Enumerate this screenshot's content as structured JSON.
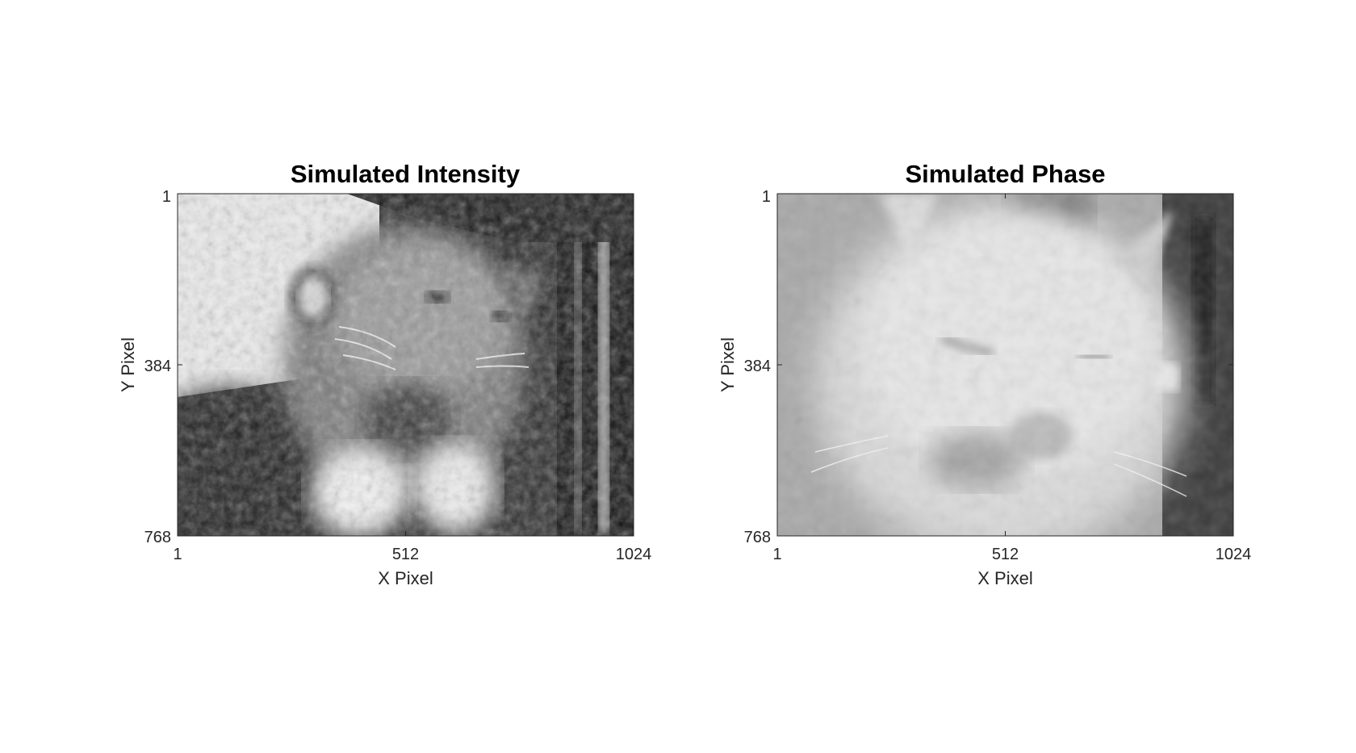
{
  "chart_data": [
    {
      "type": "heatmap",
      "title": "Simulated Intensity",
      "xlabel": "X Pixel",
      "ylabel": "Y Pixel",
      "xlim": [
        1,
        1024
      ],
      "ylim": [
        1,
        768
      ],
      "x_ticks": [
        "1",
        "512",
        "1024"
      ],
      "y_ticks": [
        "1",
        "384",
        "768"
      ],
      "y_direction": "reverse",
      "colormap": "gray",
      "content": "grayscale image"
    },
    {
      "type": "heatmap",
      "title": "Simulated Phase",
      "xlabel": "X Pixel",
      "ylabel": "Y Pixel",
      "xlim": [
        1,
        1024
      ],
      "ylim": [
        1,
        768
      ],
      "x_ticks": [
        "1",
        "512",
        "1024"
      ],
      "y_ticks": [
        "1",
        "384",
        "768"
      ],
      "y_direction": "reverse",
      "colormap": "gray",
      "content": "grayscale image"
    }
  ]
}
